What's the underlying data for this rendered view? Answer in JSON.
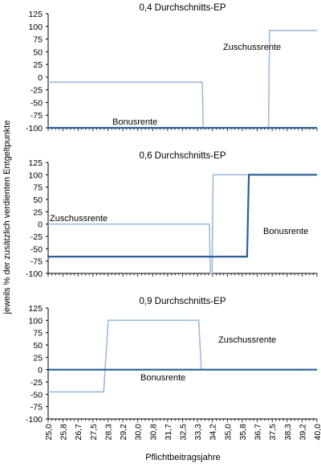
{
  "figure": {
    "ylabel": "jeweils % der zusätzlich verdienten Entgeltpunkte",
    "xlabel": "Pflichtbeitragsjahre"
  },
  "chart_data": [
    {
      "type": "line",
      "title": "0,4 Durchschnitts-EP",
      "ylim": [
        -100,
        125
      ],
      "yticks": [
        -100,
        -75,
        -50,
        -25,
        0,
        25,
        50,
        75,
        100,
        125
      ],
      "xlim": [
        25,
        40
      ],
      "x_tick_labels": [],
      "series": [
        {
          "name": "Zuschussrente",
          "color": "#9dbbdc",
          "points": [
            [
              25.0,
              -10
            ],
            [
              33.6,
              -10
            ],
            [
              33.65,
              -100
            ],
            [
              37.3,
              -100
            ],
            [
              37.35,
              92
            ],
            [
              40.0,
              92
            ]
          ]
        },
        {
          "name": "Bonusrente",
          "color": "#2a5f97",
          "points": [
            [
              25.0,
              -100
            ],
            [
              40.0,
              -100
            ]
          ]
        }
      ],
      "annotations": [
        "Zuschussrente",
        "Bonusrente"
      ]
    },
    {
      "type": "line",
      "title": "0,6 Durchschnitts-EP",
      "ylim": [
        -100,
        125
      ],
      "yticks": [
        -100,
        -75,
        -50,
        -25,
        0,
        25,
        50,
        75,
        100,
        125
      ],
      "xlim": [
        25,
        40
      ],
      "x_tick_labels": [],
      "series": [
        {
          "name": "Zuschussrente",
          "color": "#9dbbdc",
          "points": [
            [
              25.0,
              0
            ],
            [
              34.0,
              0
            ],
            [
              34.05,
              -100
            ],
            [
              34.15,
              -100
            ],
            [
              34.2,
              100
            ],
            [
              40.0,
              100
            ]
          ]
        },
        {
          "name": "Bonusrente",
          "color": "#2a5f97",
          "points": [
            [
              25.0,
              -66
            ],
            [
              36.1,
              -66
            ],
            [
              36.2,
              100
            ],
            [
              40.0,
              100
            ]
          ]
        }
      ],
      "annotations": [
        "Zuschussrente",
        "Bonusrente"
      ]
    },
    {
      "type": "line",
      "title": "0,9 Durchschnitts-EP",
      "ylim": [
        -100,
        125
      ],
      "yticks": [
        -100,
        -75,
        -50,
        -25,
        0,
        25,
        50,
        75,
        100,
        125
      ],
      "xlim": [
        25,
        40
      ],
      "x_tick_labels": [
        "25,0",
        "25,8",
        "26,7",
        "27,5",
        "28,3",
        "29,2",
        "30,0",
        "30,8",
        "31,7",
        "32,5",
        "33,3",
        "34,2",
        "35,0",
        "35,8",
        "36,7",
        "37,5",
        "38,3",
        "39,2",
        "40,0"
      ],
      "series": [
        {
          "name": "Zuschussrente",
          "color": "#9dbbdc",
          "points": [
            [
              25.0,
              -45
            ],
            [
              28.1,
              -45
            ],
            [
              28.35,
              100
            ],
            [
              33.4,
              100
            ],
            [
              33.55,
              0
            ],
            [
              40.0,
              0
            ]
          ]
        },
        {
          "name": "Bonusrente",
          "color": "#2a5f97",
          "points": [
            [
              25.0,
              0
            ],
            [
              40.0,
              0
            ]
          ]
        }
      ],
      "annotations": [
        "Zuschussrente",
        "Bonusrente"
      ]
    }
  ]
}
